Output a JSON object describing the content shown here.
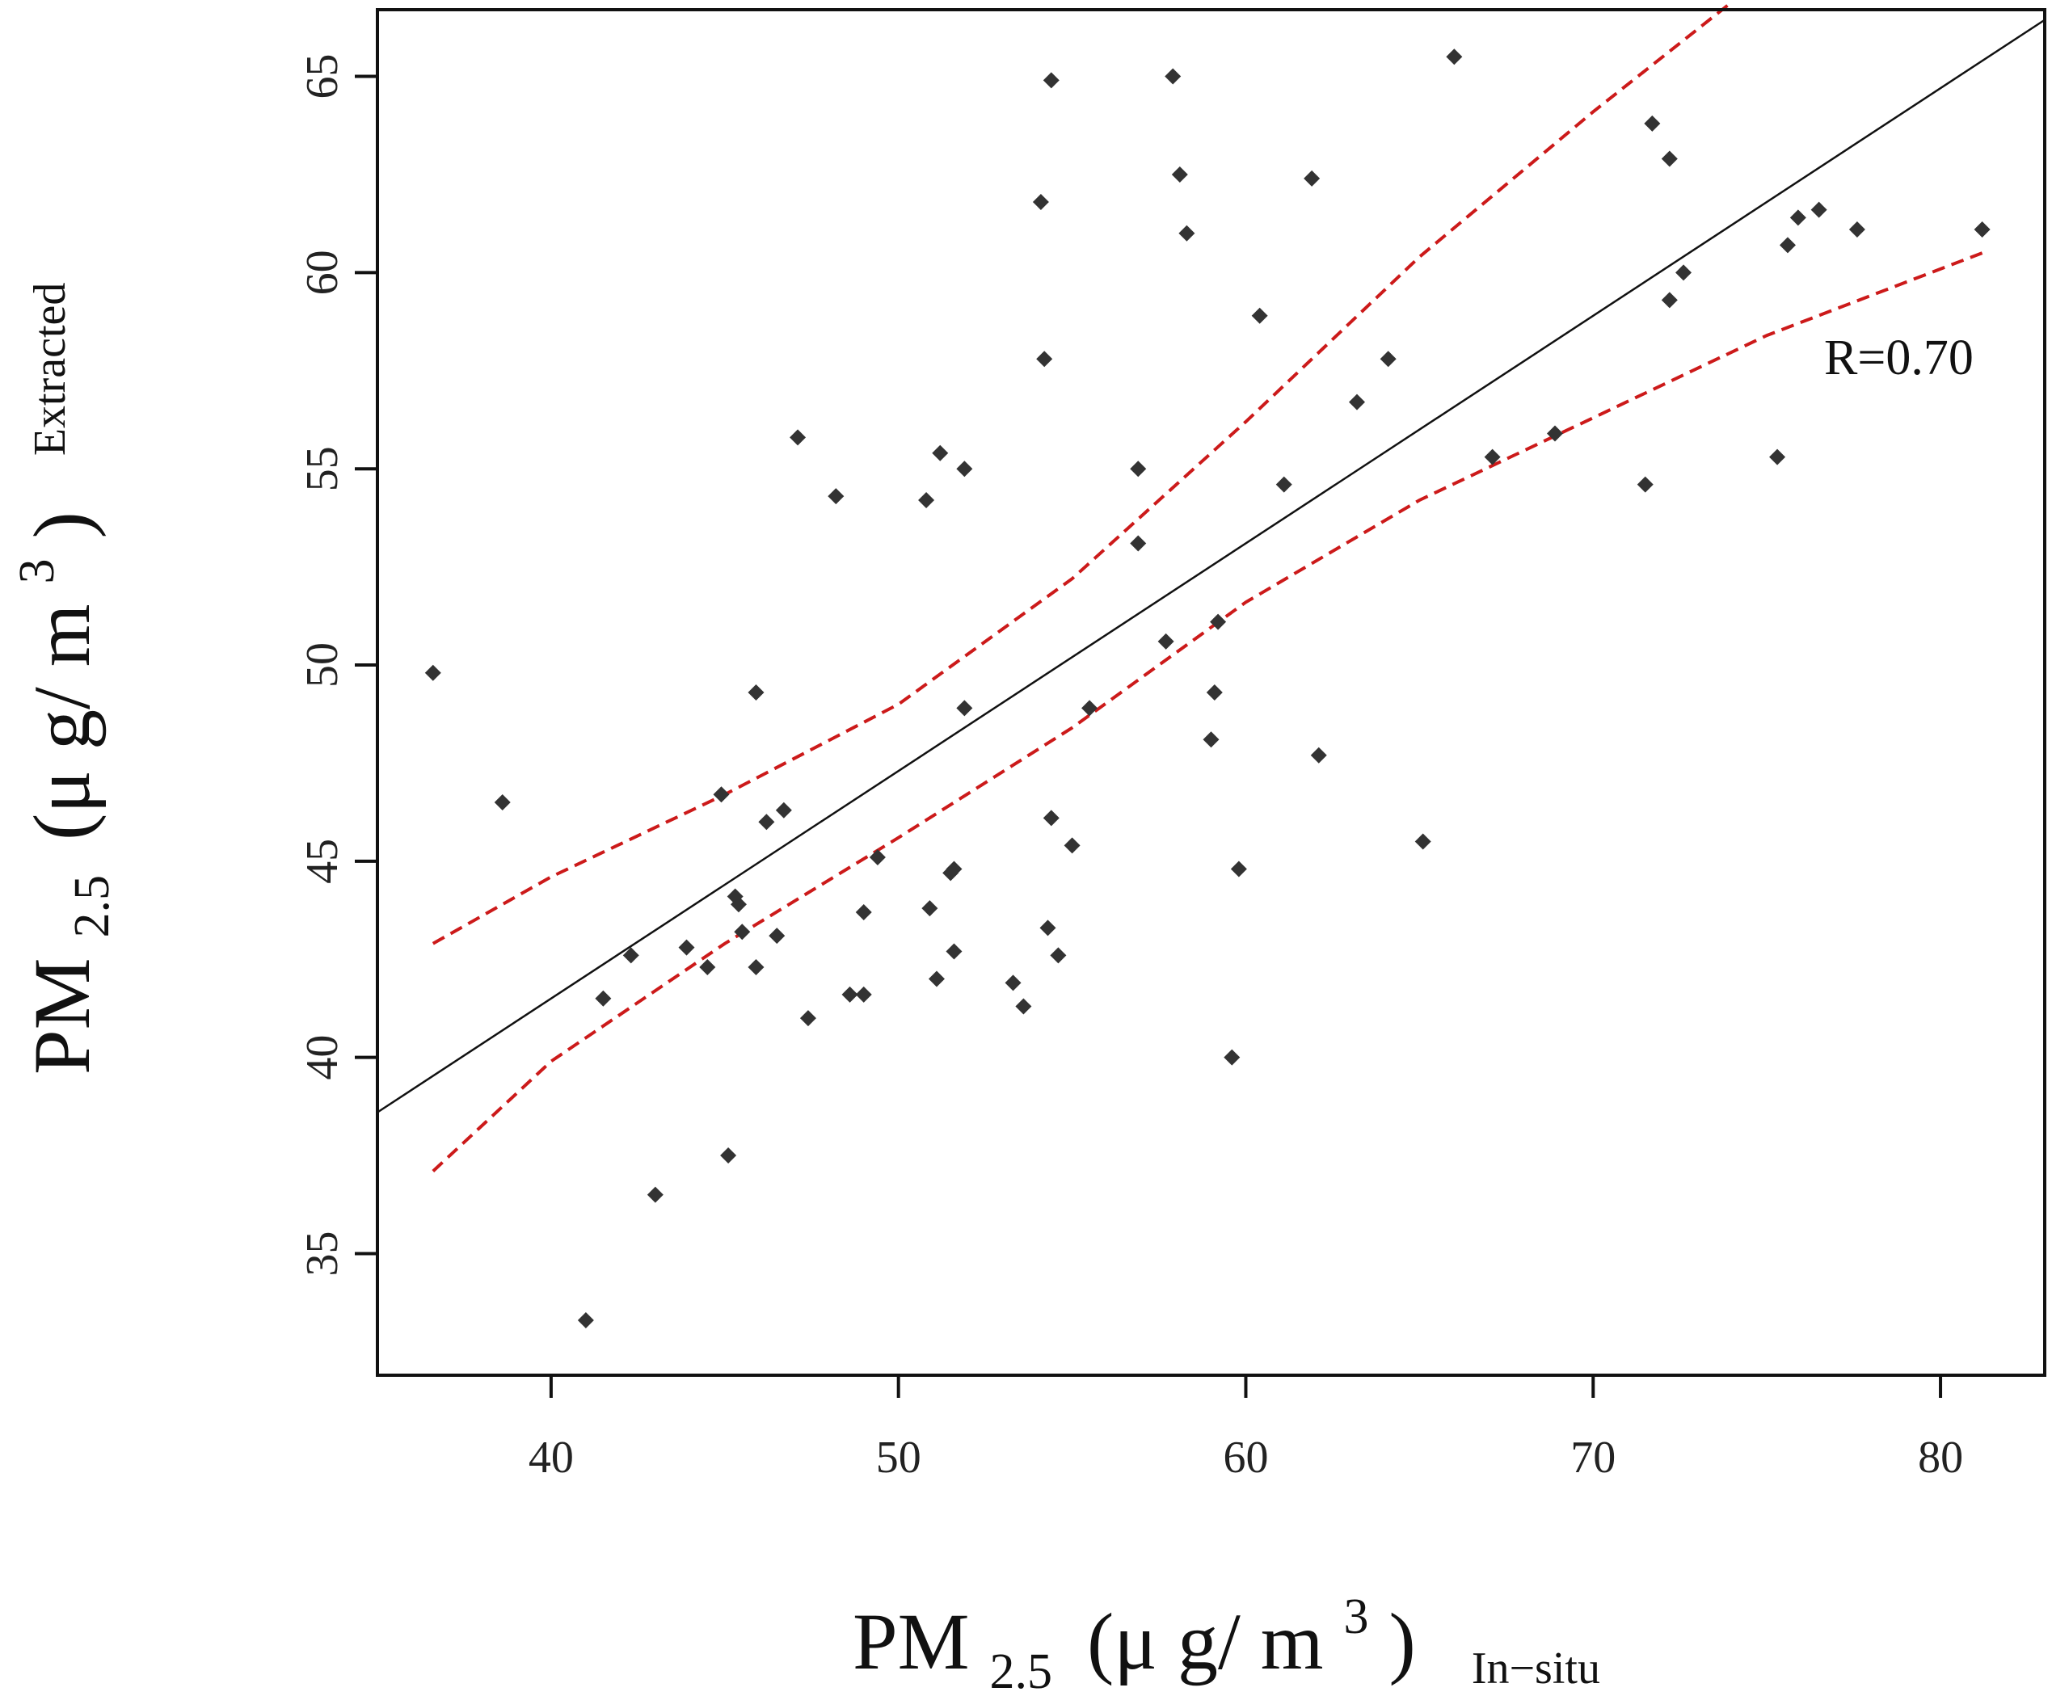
{
  "chart_data": {
    "type": "scatter",
    "title": "",
    "xlabel": {
      "prefix": "PM",
      "sub": "2.5",
      "unit": "(μ g/ m",
      "sup": "3",
      "close": ")",
      "tag": "In−situ"
    },
    "ylabel": {
      "prefix": "PM",
      "sub": "2.5",
      "unit": "(μ g/ m",
      "sup": "3",
      "close": ")",
      "tag": "Extracted"
    },
    "xlim": [
      35,
      83
    ],
    "ylim": [
      31.9,
      66.7
    ],
    "x_ticks": [
      40,
      50,
      60,
      70,
      80
    ],
    "y_ticks": [
      35,
      40,
      45,
      50,
      55,
      60,
      65
    ],
    "grid": false,
    "annotation": {
      "text": "R=0.70",
      "x": 76.6,
      "y": 57.9
    },
    "fit_line": {
      "slope": 0.58,
      "intercept": 18.3,
      "x_range": [
        35,
        83
      ],
      "color": "#111111"
    },
    "confidence_band": {
      "color": "#cc1a1a",
      "upper": [
        [
          36.6,
          42.9
        ],
        [
          40,
          44.6
        ],
        [
          45,
          46.7
        ],
        [
          50,
          49.0
        ],
        [
          55,
          52.2
        ],
        [
          60,
          56.2
        ],
        [
          65,
          60.4
        ],
        [
          70,
          64.1
        ],
        [
          74,
          66.9
        ]
      ],
      "lower": [
        [
          36.6,
          37.1
        ],
        [
          40,
          39.9
        ],
        [
          45,
          42.9
        ],
        [
          50,
          45.6
        ],
        [
          55,
          48.4
        ],
        [
          60,
          51.6
        ],
        [
          65,
          54.2
        ],
        [
          70,
          56.3
        ],
        [
          75,
          58.4
        ],
        [
          81.2,
          60.5
        ]
      ]
    },
    "points": [
      [
        36.6,
        49.8
      ],
      [
        38.6,
        46.5
      ],
      [
        41.0,
        33.3
      ],
      [
        41.5,
        41.5
      ],
      [
        42.3,
        42.6
      ],
      [
        43.0,
        36.5
      ],
      [
        43.9,
        42.8
      ],
      [
        44.5,
        42.3
      ],
      [
        44.9,
        46.7
      ],
      [
        45.1,
        37.5
      ],
      [
        45.3,
        44.1
      ],
      [
        45.4,
        43.9
      ],
      [
        45.5,
        43.2
      ],
      [
        45.9,
        42.3
      ],
      [
        45.9,
        49.3
      ],
      [
        46.2,
        46.0
      ],
      [
        46.5,
        43.1
      ],
      [
        46.7,
        46.3
      ],
      [
        47.1,
        55.8
      ],
      [
        47.4,
        41.0
      ],
      [
        48.2,
        54.3
      ],
      [
        48.6,
        41.6
      ],
      [
        49.0,
        43.7
      ],
      [
        49.0,
        41.6
      ],
      [
        49.4,
        45.1
      ],
      [
        50.8,
        54.2
      ],
      [
        50.9,
        43.8
      ],
      [
        51.1,
        42.0
      ],
      [
        51.2,
        55.4
      ],
      [
        51.5,
        44.7
      ],
      [
        51.6,
        44.8
      ],
      [
        51.6,
        42.7
      ],
      [
        51.9,
        48.9
      ],
      [
        51.9,
        55.0
      ],
      [
        53.3,
        41.9
      ],
      [
        53.6,
        41.3
      ],
      [
        54.1,
        61.8
      ],
      [
        54.2,
        57.8
      ],
      [
        54.3,
        43.3
      ],
      [
        54.4,
        46.1
      ],
      [
        54.4,
        64.9
      ],
      [
        54.6,
        42.6
      ],
      [
        55.0,
        45.4
      ],
      [
        55.5,
        48.9
      ],
      [
        56.9,
        55.0
      ],
      [
        56.9,
        53.1
      ],
      [
        57.7,
        50.6
      ],
      [
        57.9,
        65.0
      ],
      [
        58.1,
        62.5
      ],
      [
        58.3,
        61.0
      ],
      [
        59.0,
        48.1
      ],
      [
        59.1,
        49.3
      ],
      [
        59.2,
        51.1
      ],
      [
        59.6,
        40.0
      ],
      [
        59.8,
        44.8
      ],
      [
        60.4,
        58.9
      ],
      [
        61.1,
        54.6
      ],
      [
        61.9,
        62.4
      ],
      [
        62.1,
        47.7
      ],
      [
        63.2,
        56.7
      ],
      [
        64.1,
        57.8
      ],
      [
        65.1,
        45.5
      ],
      [
        66.0,
        65.5
      ],
      [
        67.1,
        55.3
      ],
      [
        68.9,
        55.9
      ],
      [
        71.5,
        54.6
      ],
      [
        71.7,
        63.8
      ],
      [
        72.2,
        62.9
      ],
      [
        72.2,
        59.3
      ],
      [
        72.6,
        60.0
      ],
      [
        75.3,
        55.3
      ],
      [
        75.6,
        60.7
      ],
      [
        75.9,
        61.4
      ],
      [
        76.5,
        61.6
      ],
      [
        77.6,
        61.1
      ],
      [
        81.2,
        61.1
      ]
    ]
  }
}
